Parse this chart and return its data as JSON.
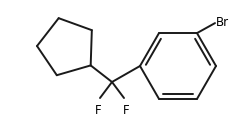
{
  "background_color": "#ffffff",
  "line_color": "#1a1a1a",
  "line_width": 1.4,
  "text_color": "#000000",
  "font_size": 8.5,
  "br_label": "Br",
  "f1_label": "F",
  "f2_label": "F",
  "fig_width": 2.52,
  "fig_height": 1.32,
  "dpi": 100
}
